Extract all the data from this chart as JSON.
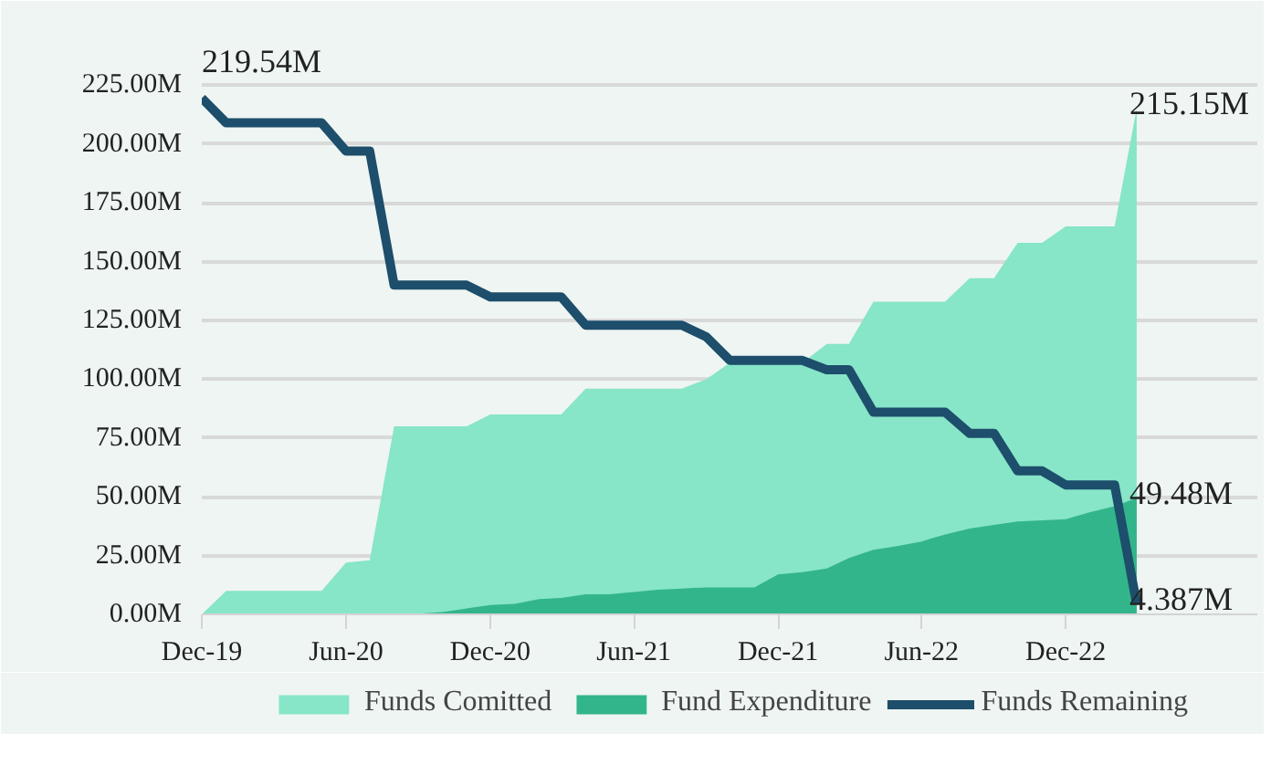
{
  "chart_data": {
    "type": "area",
    "x": [
      "2019-12",
      "2020-01",
      "2020-02",
      "2020-03",
      "2020-04",
      "2020-05",
      "2020-06",
      "2020-07",
      "2020-08",
      "2020-09",
      "2020-10",
      "2020-11",
      "2020-12",
      "2021-01",
      "2021-02",
      "2021-03",
      "2021-04",
      "2021-05",
      "2021-06",
      "2021-07",
      "2021-08",
      "2021-09",
      "2021-10",
      "2021-11",
      "2021-12",
      "2022-01",
      "2022-02",
      "2022-03",
      "2022-04",
      "2022-05",
      "2022-06",
      "2022-07",
      "2022-08",
      "2022-09",
      "2022-10",
      "2022-11",
      "2022-12",
      "2023-01",
      "2023-02",
      "2023-03"
    ],
    "series": [
      {
        "name": "Funds Comitted",
        "color": "#87e5c8",
        "values": [
          0,
          10,
          10,
          10,
          10,
          10,
          22,
          23,
          80,
          80,
          80,
          80,
          85,
          85,
          85,
          85,
          96,
          96,
          96,
          96,
          96,
          100,
          107,
          107,
          107,
          107,
          115,
          115,
          133,
          133,
          133,
          133,
          143,
          143,
          158,
          158,
          165,
          165,
          165,
          215.15
        ]
      },
      {
        "name": "Fund Expenditure",
        "color": "#33b58c",
        "values": [
          0,
          0,
          0,
          0,
          0,
          0,
          0,
          0,
          0,
          0.3,
          1,
          2.5,
          4,
          4.5,
          6.5,
          7,
          8.5,
          8.5,
          9.5,
          10.5,
          11,
          11.5,
          11.5,
          11.5,
          17,
          18,
          19.5,
          24,
          27.5,
          29,
          31,
          34,
          36.5,
          38,
          39.5,
          40,
          40.5,
          43.5,
          46,
          49.48
        ]
      },
      {
        "name": "Funds Remaining",
        "type": "line",
        "color": "#1d4e6b",
        "values": [
          219.54,
          209,
          209,
          209,
          209,
          209,
          197,
          197,
          140,
          140,
          140,
          140,
          135,
          135,
          135,
          135,
          123,
          123,
          123,
          123,
          123,
          118,
          108,
          108,
          108,
          108,
          104,
          104,
          86,
          86,
          86,
          86,
          77,
          77,
          61,
          61,
          55,
          55,
          55,
          4.387
        ]
      }
    ],
    "xlim": [
      "2019-12",
      "2023-08"
    ],
    "xticks": [
      {
        "value": "2019-12",
        "label": "Dec-19"
      },
      {
        "value": "2020-06",
        "label": "Jun-20"
      },
      {
        "value": "2020-12",
        "label": "Dec-20"
      },
      {
        "value": "2021-06",
        "label": "Jun-21"
      },
      {
        "value": "2021-12",
        "label": "Dec-21"
      },
      {
        "value": "2022-06",
        "label": "Jun-22"
      },
      {
        "value": "2022-12",
        "label": "Dec-22"
      }
    ],
    "ylim": [
      0,
      250
    ],
    "yticks": [
      {
        "value": 0,
        "label": "0.00M"
      },
      {
        "value": 25,
        "label": "25.00M"
      },
      {
        "value": 50,
        "label": "50.00M"
      },
      {
        "value": 75,
        "label": "75.00M"
      },
      {
        "value": 100,
        "label": "100.00M"
      },
      {
        "value": 125,
        "label": "125.00M"
      },
      {
        "value": 150,
        "label": "150.00M"
      },
      {
        "value": 175,
        "label": "175.00M"
      },
      {
        "value": 200,
        "label": "200.00M"
      },
      {
        "value": 225,
        "label": "225.00M"
      }
    ],
    "annotations": [
      {
        "text": "219.54M",
        "x": "2019-12",
        "y": 219.54
      },
      {
        "text": "215.15M",
        "x": "2023-03",
        "y": 215.15
      },
      {
        "text": "49.48M",
        "x": "2023-03",
        "y": 49.48
      },
      {
        "text": "4.387M",
        "x": "2023-03",
        "y": 4.387
      }
    ],
    "grid": "y",
    "legend": "bottom"
  }
}
